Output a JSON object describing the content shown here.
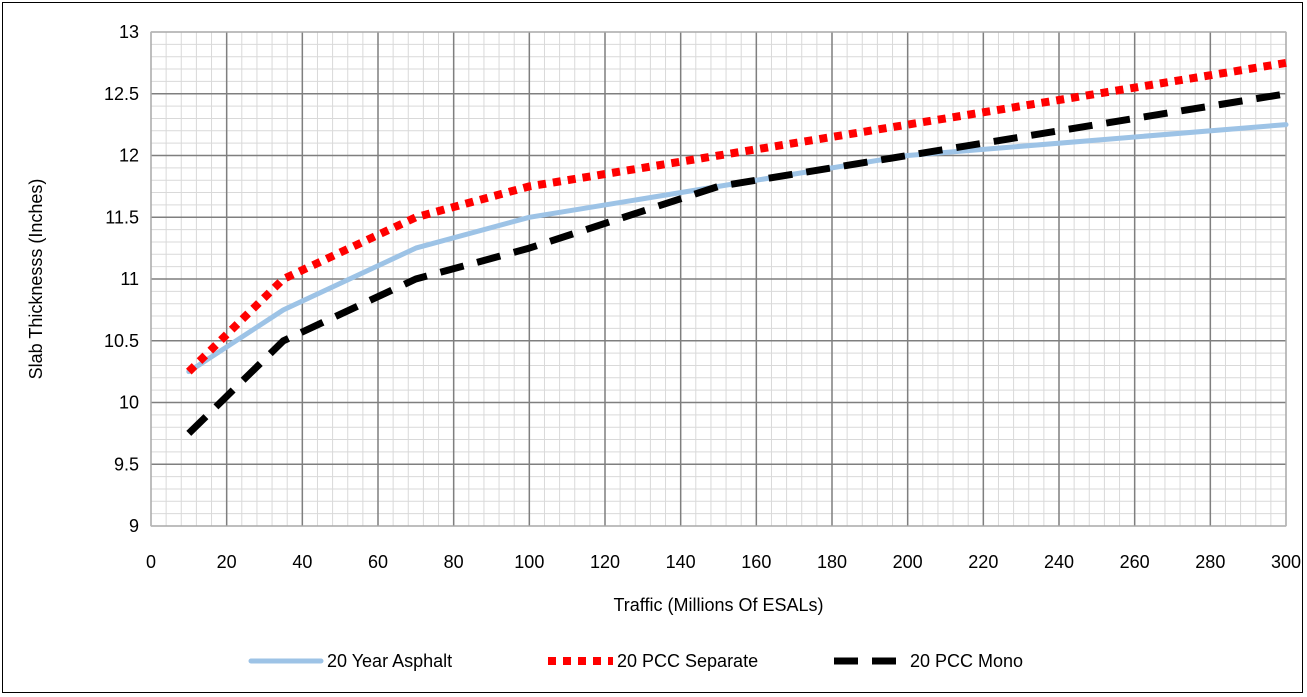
{
  "chart_data": {
    "type": "line",
    "title": "",
    "xlabel": "Traffic (Millions Of ESALs)",
    "ylabel": "Slab Thicknesss (Inches)",
    "xlim": [
      0,
      300
    ],
    "ylim": [
      9,
      13
    ],
    "x_ticks": [
      0,
      20,
      40,
      60,
      80,
      100,
      120,
      140,
      160,
      180,
      200,
      220,
      240,
      260,
      280,
      300
    ],
    "y_ticks": [
      9,
      9.5,
      10,
      10.5,
      11,
      11.5,
      12,
      12.5,
      13
    ],
    "grid": "major and minor",
    "legend_position": "bottom",
    "series": [
      {
        "name": "20 Year Asphalt",
        "color": "#9dc3e6",
        "style": "solid",
        "points": [
          [
            10,
            10.25
          ],
          [
            35,
            10.75
          ],
          [
            70,
            11.25
          ],
          [
            100,
            11.5
          ],
          [
            150,
            11.75
          ],
          [
            200,
            12.0
          ],
          [
            250,
            12.125
          ],
          [
            300,
            12.25
          ]
        ]
      },
      {
        "name": "20 PCC Separate",
        "color": "#ff0000",
        "style": "dotted",
        "points": [
          [
            10,
            10.25
          ],
          [
            35,
            11.0
          ],
          [
            70,
            11.5
          ],
          [
            100,
            11.75
          ],
          [
            150,
            12.0
          ],
          [
            200,
            12.25
          ],
          [
            250,
            12.5
          ],
          [
            300,
            12.75
          ]
        ]
      },
      {
        "name": "20 PCC Mono",
        "color": "#000000",
        "style": "dashed",
        "points": [
          [
            10,
            9.75
          ],
          [
            35,
            10.5
          ],
          [
            70,
            11.0
          ],
          [
            100,
            11.25
          ],
          [
            150,
            11.75
          ],
          [
            200,
            12.0
          ],
          [
            250,
            12.25
          ],
          [
            300,
            12.5
          ]
        ]
      }
    ]
  }
}
